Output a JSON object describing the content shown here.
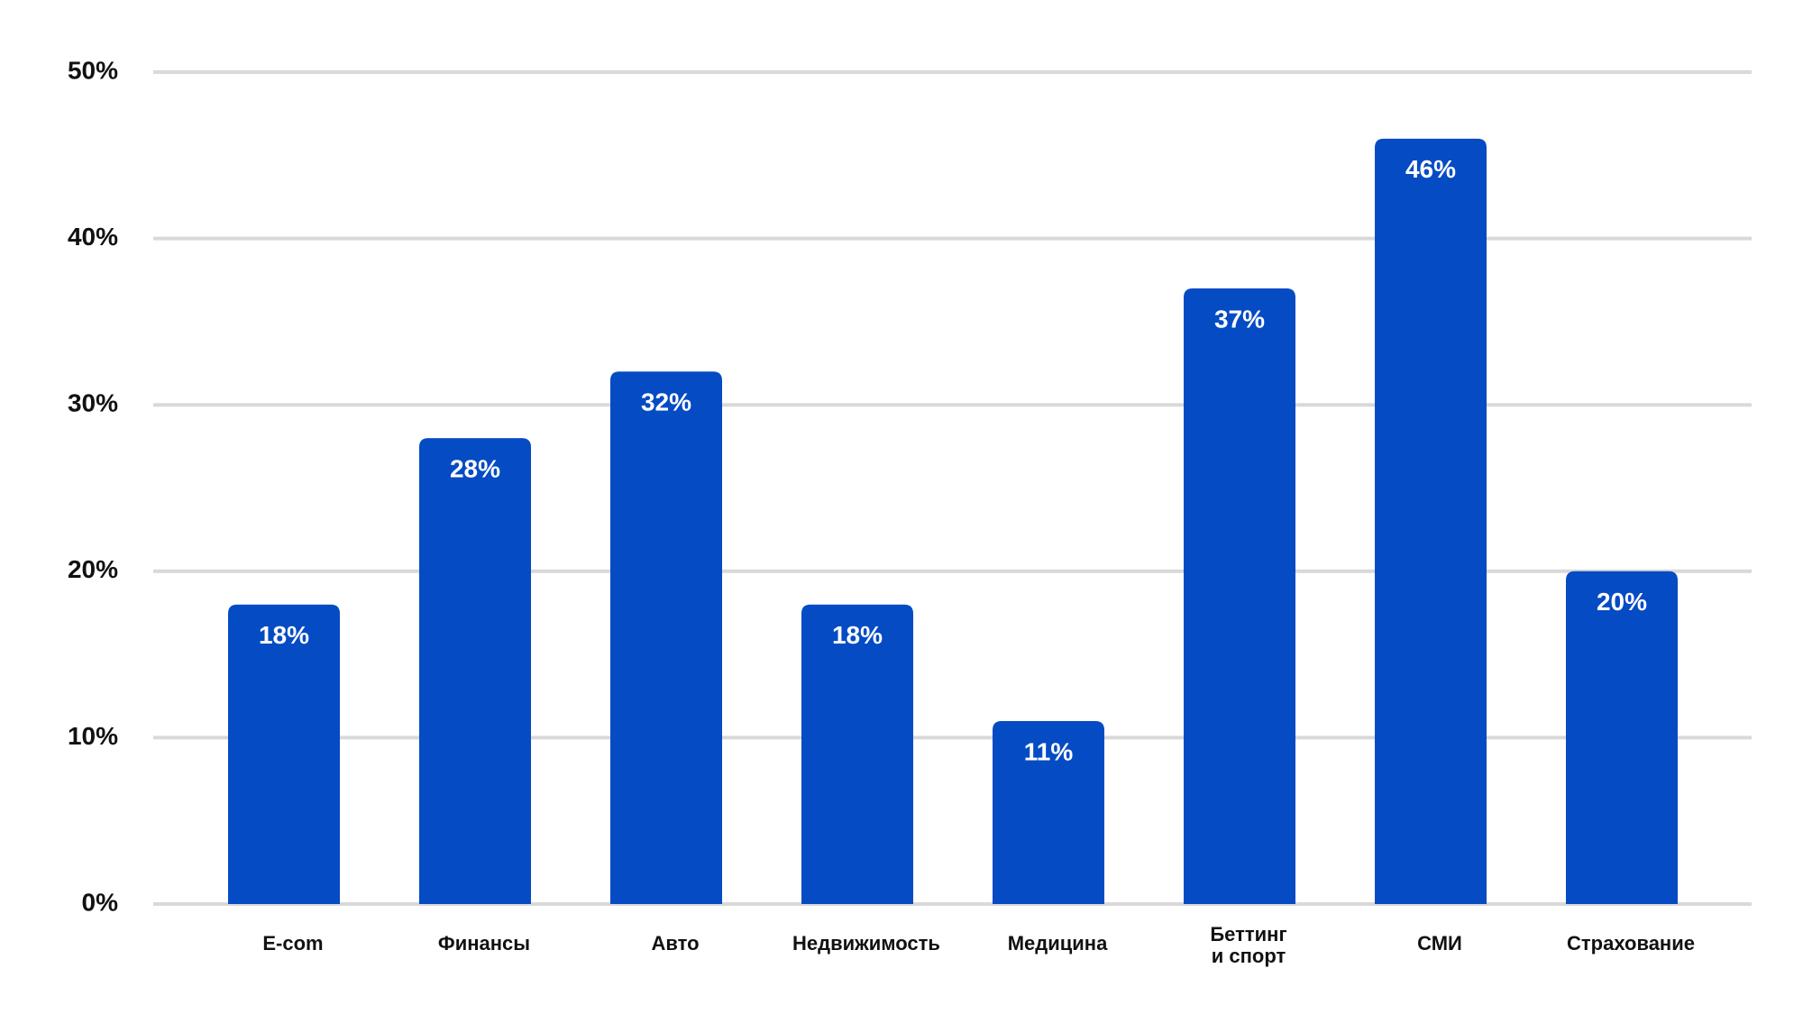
{
  "chart_data": {
    "type": "bar",
    "title": "",
    "xlabel": "",
    "ylabel": "",
    "ylim": [
      0,
      50
    ],
    "grid": true,
    "yticks": [
      0,
      10,
      20,
      30,
      40,
      50
    ],
    "ytick_labels": [
      "0%",
      "10%",
      "20%",
      "30%",
      "40%",
      "50%"
    ],
    "categories": [
      "E-com",
      "Финансы",
      "Авто",
      "Недвижимость",
      "Медицина",
      "Беттинг\nи спорт",
      "СМИ",
      "Страхование"
    ],
    "values": [
      18,
      28,
      32,
      18,
      11,
      37,
      46,
      20
    ],
    "value_labels": [
      "18%",
      "28%",
      "32%",
      "18%",
      "11%",
      "37%",
      "46%",
      "20%"
    ],
    "bar_color": "#054bc4",
    "grid_color": "#d9d9d9"
  }
}
